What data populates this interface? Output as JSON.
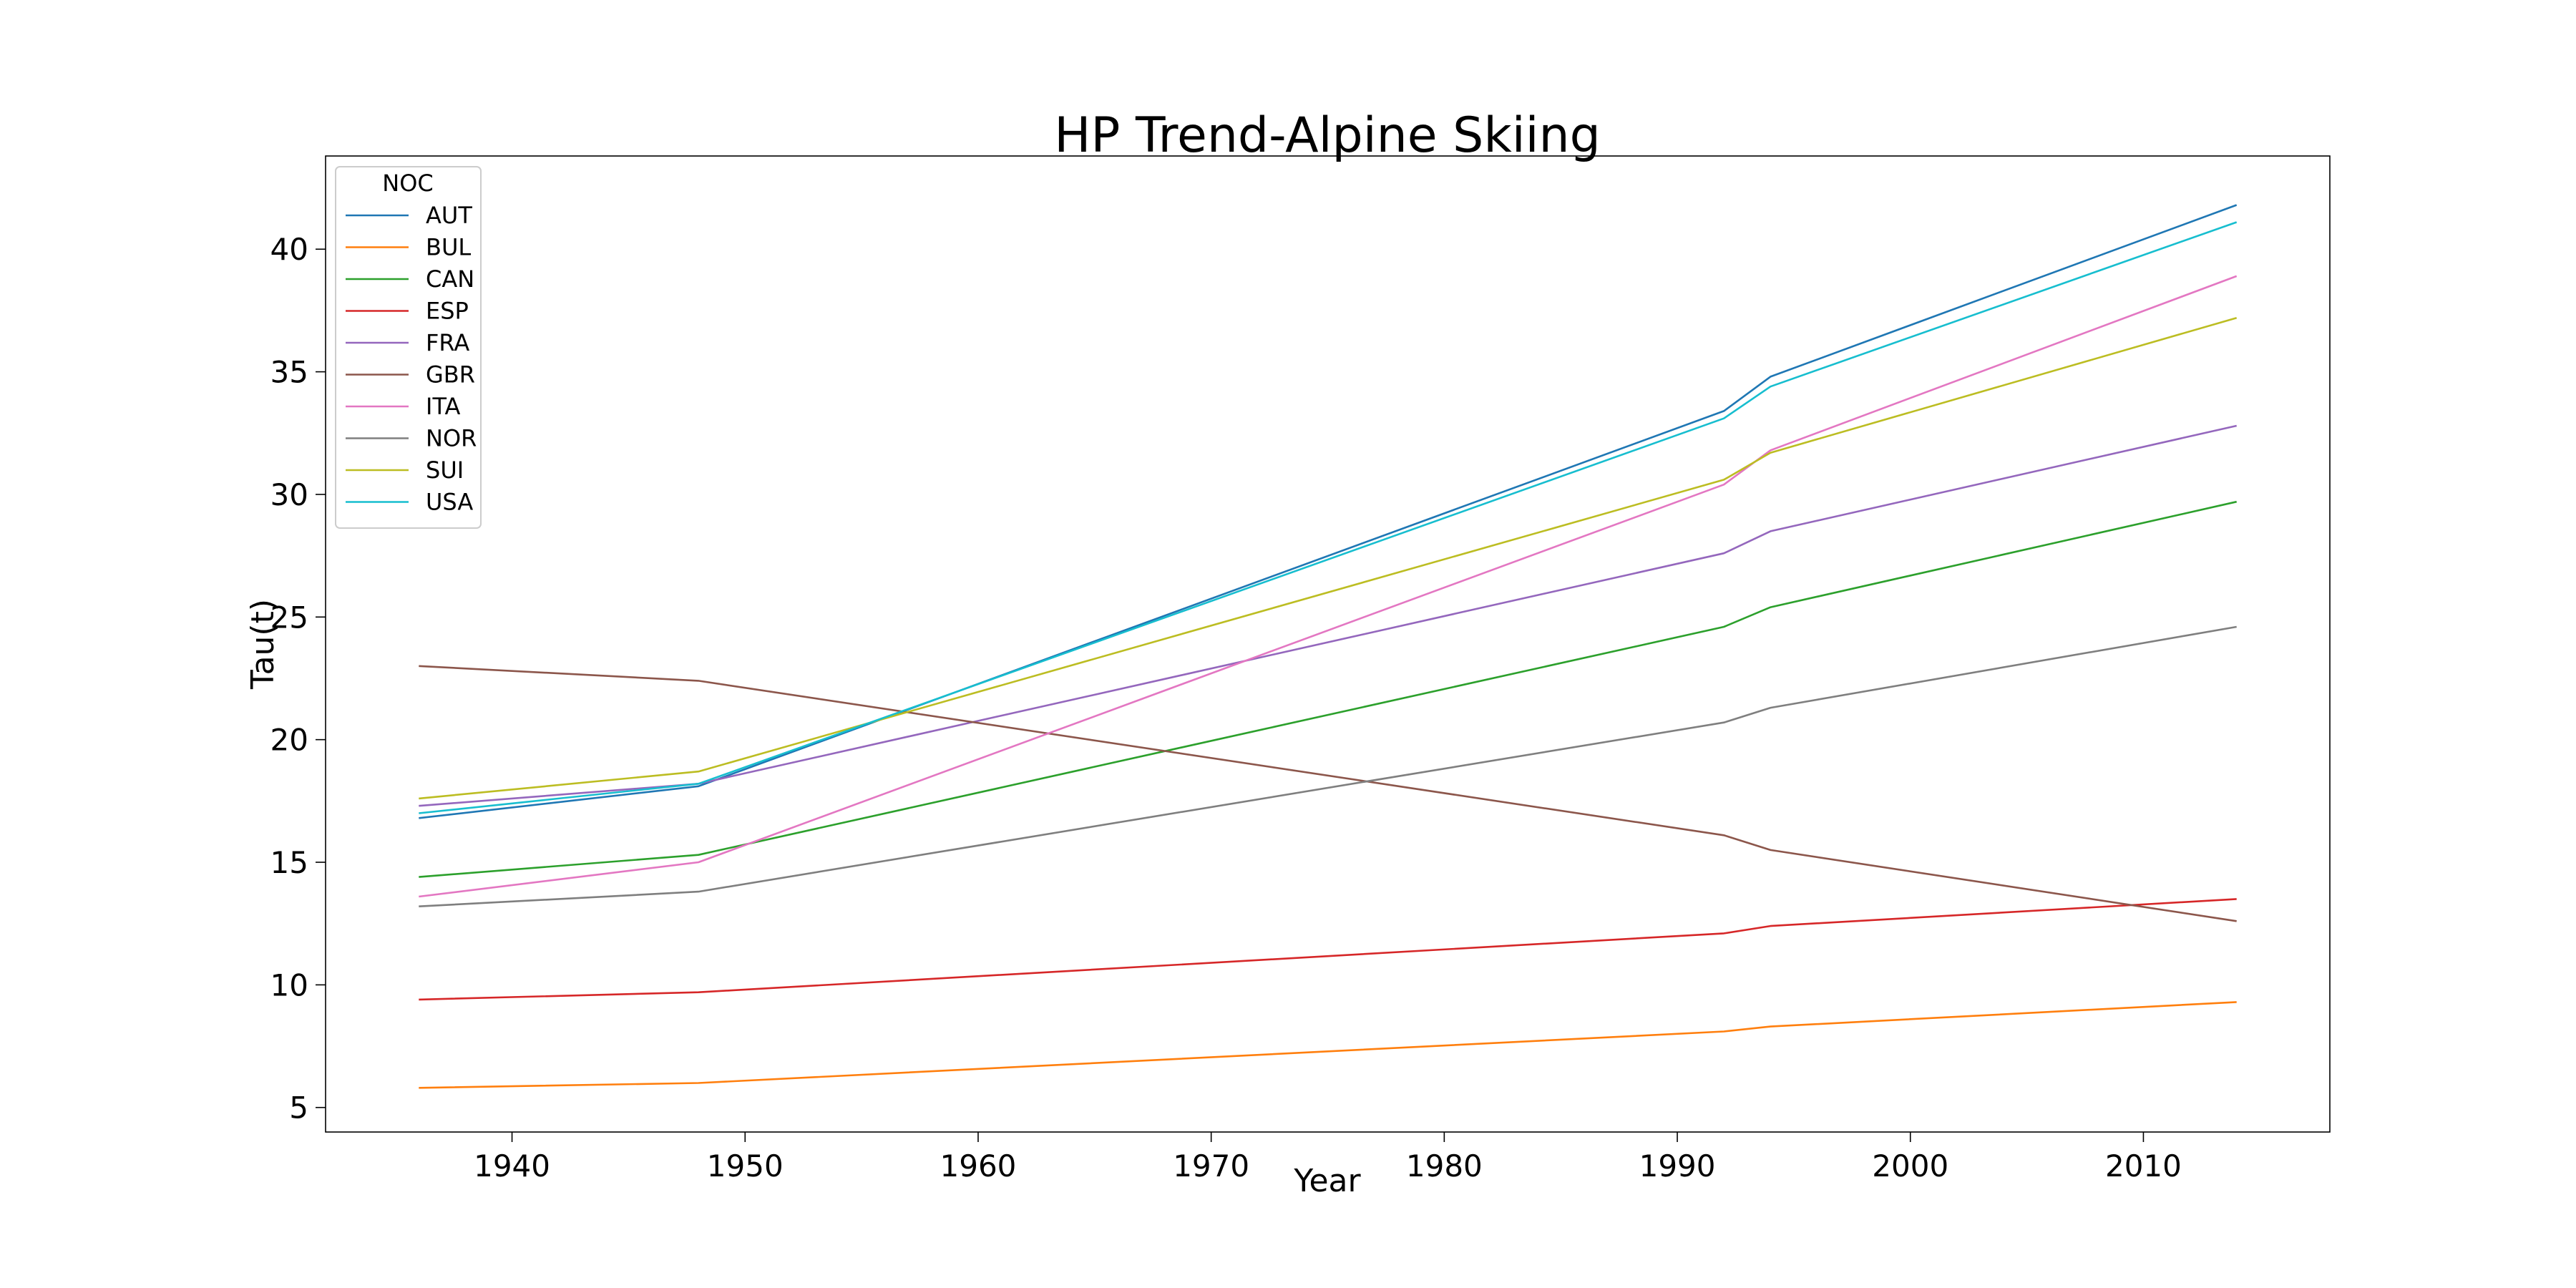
{
  "chart_data": {
    "type": "line",
    "title": "HP Trend-Alpine Skiing",
    "xlabel": "Year",
    "ylabel": "Tau(t)",
    "xlim": [
      1932,
      2018
    ],
    "ylim": [
      4.0,
      43.8
    ],
    "xticks": [
      1940,
      1950,
      1960,
      1970,
      1980,
      1990,
      2000,
      2010
    ],
    "yticks": [
      5,
      10,
      15,
      20,
      25,
      30,
      35,
      40
    ],
    "grid": false,
    "legend": {
      "title": "NOC",
      "placement": "top-left"
    },
    "x": [
      1936,
      1948,
      1992,
      1994,
      2014
    ],
    "series": [
      {
        "name": "AUT",
        "color": "#1f77b4",
        "values": [
          16.8,
          18.1,
          33.4,
          34.8,
          41.8
        ]
      },
      {
        "name": "BUL",
        "color": "#ff7f0e",
        "values": [
          5.8,
          6.0,
          8.1,
          8.3,
          9.3
        ]
      },
      {
        "name": "CAN",
        "color": "#2ca02c",
        "values": [
          14.4,
          15.3,
          24.6,
          25.4,
          29.7
        ]
      },
      {
        "name": "ESP",
        "color": "#d62728",
        "values": [
          9.4,
          9.7,
          12.1,
          12.4,
          13.5
        ]
      },
      {
        "name": "FRA",
        "color": "#9467bd",
        "values": [
          17.3,
          18.2,
          27.6,
          28.5,
          32.8
        ]
      },
      {
        "name": "GBR",
        "color": "#8c564b",
        "values": [
          23.0,
          22.4,
          16.1,
          15.5,
          12.6
        ]
      },
      {
        "name": "ITA",
        "color": "#e377c2",
        "values": [
          13.6,
          15.0,
          30.4,
          31.8,
          38.9
        ]
      },
      {
        "name": "NOR",
        "color": "#7f7f7f",
        "values": [
          13.2,
          13.8,
          20.7,
          21.3,
          24.6
        ]
      },
      {
        "name": "SUI",
        "color": "#bcbd22",
        "values": [
          17.6,
          18.7,
          30.6,
          31.7,
          37.2
        ]
      },
      {
        "name": "USA",
        "color": "#17becf",
        "values": [
          17.0,
          18.2,
          33.1,
          34.4,
          41.1
        ]
      }
    ]
  }
}
